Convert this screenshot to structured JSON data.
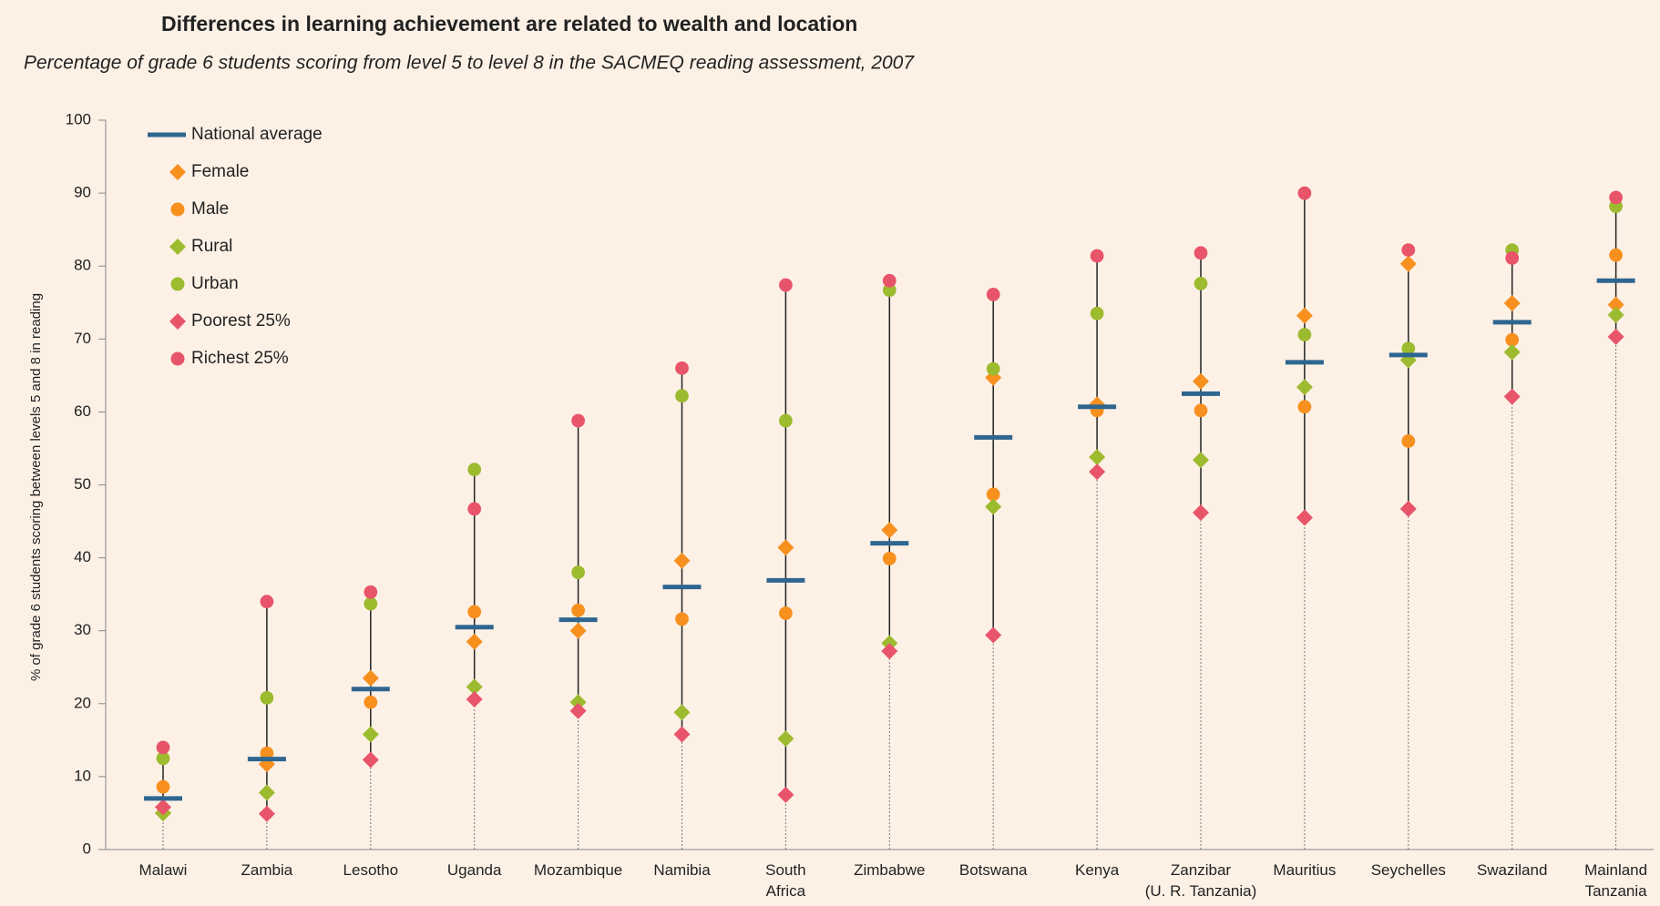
{
  "chart_data": {
    "type": "range-dot",
    "title": "Differences in learning achievement are related to wealth and location",
    "subtitle": "Percentage of grade 6 students scoring from level 5 to level 8 in the SACMEQ reading assessment, 2007",
    "y_label": "% of grade 6 students scoring between levels 5 and 8 in reading",
    "categories": [
      "Malawi",
      "Zambia",
      "Lesotho",
      "Uganda",
      "Mozambique",
      "Namibia",
      "South\nAfrica",
      "Zimbabwe",
      "Botswana",
      "Kenya",
      "Zanzibar\n(U. R. Tanzania)",
      "Mauritius",
      "Seychelles",
      "Swaziland",
      "Mainland\nTanzania"
    ],
    "series": [
      {
        "name": "National average",
        "color": "#2e6690",
        "marker": "dash",
        "values": [
          7,
          12.4,
          22,
          30.5,
          31.5,
          36,
          36.9,
          42,
          56.5,
          60.7,
          62.5,
          66.8,
          67.8,
          72.3,
          78
        ]
      },
      {
        "name": "Female",
        "color": "#f7901e",
        "marker": "diamond",
        "values": [
          5,
          11.7,
          23.5,
          28.5,
          30,
          39.6,
          41.4,
          43.8,
          64.7,
          61,
          64.2,
          73.2,
          80.3,
          74.9,
          74.7
        ]
      },
      {
        "name": "Male",
        "color": "#f7901e",
        "marker": "circle",
        "values": [
          8.6,
          13.2,
          20.2,
          32.6,
          32.8,
          31.6,
          32.4,
          39.9,
          48.7,
          60.2,
          60.2,
          60.7,
          56,
          69.9,
          81.5
        ]
      },
      {
        "name": "Rural",
        "color": "#9dbb2e",
        "marker": "diamond",
        "values": [
          5,
          7.8,
          15.8,
          22.3,
          20.2,
          18.8,
          15.2,
          28.3,
          47,
          53.8,
          53.4,
          63.4,
          67.1,
          68.2,
          73.3
        ]
      },
      {
        "name": "Urban",
        "color": "#9dbb2e",
        "marker": "circle",
        "values": [
          12.5,
          20.8,
          33.7,
          52.1,
          38,
          62.2,
          58.8,
          76.7,
          65.9,
          73.5,
          77.6,
          70.6,
          68.7,
          82.2,
          88.2
        ]
      },
      {
        "name": "Poorest 25%",
        "color": "#e8546a",
        "marker": "diamond",
        "values": [
          5.8,
          4.9,
          12.3,
          20.6,
          19,
          15.8,
          7.5,
          27.2,
          29.4,
          51.8,
          46.2,
          45.5,
          46.7,
          62.1,
          70.3
        ]
      },
      {
        "name": "Richest 25%",
        "color": "#e8546a",
        "marker": "circle",
        "values": [
          14,
          34,
          35.3,
          46.7,
          58.8,
          66,
          77.4,
          78,
          76.1,
          81.4,
          81.8,
          90,
          82.2,
          81.1,
          89.4
        ]
      }
    ],
    "ylim": [
      0,
      100
    ],
    "yticks": [
      0,
      10,
      20,
      30,
      40,
      50,
      60,
      70,
      80,
      90,
      100
    ]
  }
}
